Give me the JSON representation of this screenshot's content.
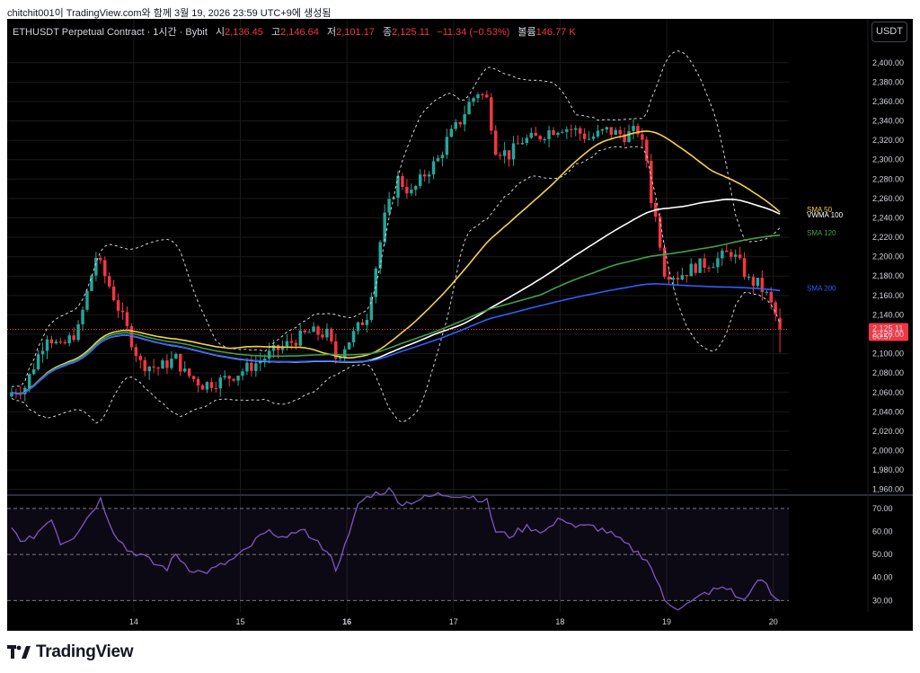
{
  "page": {
    "topline": "chitchit001이 TradingView.com와 함께 3월 19, 2026 23:59 UTC+9에 생성됨",
    "brand": "TradingView"
  },
  "legend": {
    "symbol": "ETHUSDT Perpetual Contract · 1시간 · Bybit",
    "open_k": "시",
    "open": "2,136.45",
    "high_k": "고",
    "high": "2,146.64",
    "low_k": "저",
    "low": "2,101.17",
    "close_k": "종",
    "close": "2,125.11",
    "change": "−11.34 (−0.53%)",
    "volume_k": "볼륨",
    "volume": "146.77 K"
  },
  "toolbar": {
    "currency": "USDT"
  },
  "chart_data": {
    "type": "candlestick",
    "interval": "1h",
    "y_ticks": [
      "2,400.00",
      "2,380.00",
      "2,360.00",
      "2,340.00",
      "2,320.00",
      "2,300.00",
      "2,280.00",
      "2,260.00",
      "2,240.00",
      "2,220.00",
      "2,200.00",
      "2,180.00",
      "2,160.00",
      "2,140.00",
      "2,120.00",
      "2,100.00",
      "2,080.00",
      "2,060.00",
      "2,040.00",
      "2,020.00",
      "2,000.00",
      "1,980.00",
      "1,960.00"
    ],
    "ylim": [
      1956,
      2410
    ],
    "x_ticks": [
      {
        "label": "14",
        "pos": 27.5
      },
      {
        "label": "15",
        "pos": 51.5
      },
      {
        "label": "16",
        "pos": 75.5,
        "bold": true
      },
      {
        "label": "17",
        "pos": 99.5
      },
      {
        "label": "18",
        "pos": 123.5
      },
      {
        "label": "19",
        "pos": 147.5
      },
      {
        "label": "20",
        "pos": 171.5
      }
    ],
    "n_bars": 174,
    "price_path": [
      [
        0,
        2060
      ],
      [
        3,
        2066
      ],
      [
        8,
        2120
      ],
      [
        11,
        2105
      ],
      [
        15,
        2125
      ],
      [
        19,
        2200
      ],
      [
        22,
        2170
      ],
      [
        26,
        2125
      ],
      [
        29,
        2090
      ],
      [
        33,
        2085
      ],
      [
        37,
        2095
      ],
      [
        39,
        2080
      ],
      [
        43,
        2068
      ],
      [
        47,
        2072
      ],
      [
        51,
        2080
      ],
      [
        55,
        2090
      ],
      [
        59,
        2102
      ],
      [
        63,
        2112
      ],
      [
        67,
        2122
      ],
      [
        71,
        2120
      ],
      [
        73,
        2096
      ],
      [
        77,
        2120
      ],
      [
        80,
        2140
      ],
      [
        82,
        2190
      ],
      [
        84,
        2240
      ],
      [
        87,
        2280
      ],
      [
        90,
        2265
      ],
      [
        93,
        2285
      ],
      [
        96,
        2300
      ],
      [
        98,
        2320
      ],
      [
        101,
        2340
      ],
      [
        103,
        2358
      ],
      [
        105,
        2370
      ],
      [
        107,
        2362
      ],
      [
        109,
        2312
      ],
      [
        112,
        2305
      ],
      [
        115,
        2320
      ],
      [
        118,
        2322
      ],
      [
        121,
        2330
      ],
      [
        124,
        2334
      ],
      [
        127,
        2330
      ],
      [
        130,
        2322
      ],
      [
        134,
        2330
      ],
      [
        138,
        2325
      ],
      [
        141,
        2330
      ],
      [
        143,
        2300
      ],
      [
        144,
        2260
      ],
      [
        145,
        2240
      ],
      [
        146,
        2215
      ],
      [
        147,
        2185
      ],
      [
        150,
        2180
      ],
      [
        154,
        2190
      ],
      [
        158,
        2195
      ],
      [
        162,
        2205
      ],
      [
        164,
        2192
      ],
      [
        166,
        2175
      ],
      [
        168,
        2172
      ],
      [
        170,
        2160
      ],
      [
        172,
        2140
      ],
      [
        173,
        2125
      ]
    ],
    "last_candle": {
      "open": 2136.45,
      "high": 2146.64,
      "low": 2101.17,
      "close": 2125.11
    },
    "last_price": "2,125.11",
    "countdown": "00:57",
    "indicators": [
      {
        "name": "SMA 50",
        "color": "#f7d046",
        "end_value": 2246
      },
      {
        "name": "VWMA 100",
        "color": "#ffffff",
        "end_value": 2244
      },
      {
        "name": "SMA 120",
        "color": "#43a047",
        "end_value": 2222
      },
      {
        "name": "SMA 200",
        "color": "#2962ff",
        "end_value": 2165
      }
    ],
    "bollinger_color": "#d1d4dc",
    "rsi": {
      "y_ticks": [
        "70.00",
        "60.00",
        "50.00",
        "40.00",
        "30.00"
      ],
      "ylim": [
        27,
        75
      ],
      "levels": [
        70,
        50,
        30
      ],
      "color": "#7e57c2",
      "path": [
        [
          0,
          61
        ],
        [
          3,
          55
        ],
        [
          5,
          58
        ],
        [
          7,
          62
        ],
        [
          9,
          66
        ],
        [
          11,
          55
        ],
        [
          14,
          58
        ],
        [
          17,
          66
        ],
        [
          20,
          74
        ],
        [
          23,
          60
        ],
        [
          26,
          52
        ],
        [
          29,
          50
        ],
        [
          32,
          46
        ],
        [
          35,
          44
        ],
        [
          37,
          50
        ],
        [
          40,
          44
        ],
        [
          43,
          42
        ],
        [
          46,
          44
        ],
        [
          50,
          48
        ],
        [
          53,
          52
        ],
        [
          56,
          58
        ],
        [
          59,
          60
        ],
        [
          62,
          56
        ],
        [
          65,
          62
        ],
        [
          68,
          56
        ],
        [
          71,
          52
        ],
        [
          73,
          44
        ],
        [
          76,
          58
        ],
        [
          78,
          72
        ],
        [
          81,
          76
        ],
        [
          85,
          78
        ],
        [
          88,
          72
        ],
        [
          92,
          74
        ],
        [
          96,
          76
        ],
        [
          100,
          76
        ],
        [
          104,
          75
        ],
        [
          107,
          73
        ],
        [
          109,
          60
        ],
        [
          112,
          58
        ],
        [
          116,
          62
        ],
        [
          120,
          60
        ],
        [
          124,
          66
        ],
        [
          127,
          62
        ],
        [
          131,
          62
        ],
        [
          134,
          60
        ],
        [
          137,
          56
        ],
        [
          140,
          52
        ],
        [
          143,
          48
        ],
        [
          145,
          40
        ],
        [
          147,
          30
        ],
        [
          150,
          27
        ],
        [
          153,
          29
        ],
        [
          156,
          33
        ],
        [
          159,
          35
        ],
        [
          162,
          35
        ],
        [
          164,
          30
        ],
        [
          166,
          32
        ],
        [
          168,
          40
        ],
        [
          170,
          36
        ],
        [
          172,
          30
        ],
        [
          173,
          30
        ]
      ]
    },
    "colors": {
      "up": "#26a69a",
      "down": "#f23645",
      "grid": "#1a1a1a",
      "price_line": "#f23645"
    }
  }
}
